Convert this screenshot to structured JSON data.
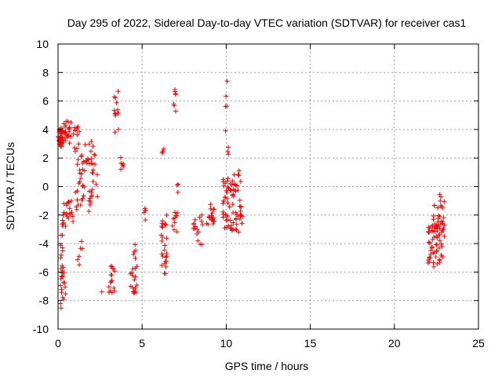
{
  "chart_data": {
    "type": "scatter",
    "title": "Day 295 of 2022, Sidereal Day-to-day VTEC variation (SDTVAR) for receiver cas1",
    "xlabel": "GPS time / hours",
    "ylabel": "SDTVAR / TECUs",
    "xlim": [
      0,
      25
    ],
    "ylim": [
      -10,
      10
    ],
    "xticks": [
      0,
      5,
      10,
      15,
      20,
      25
    ],
    "yticks": [
      -10,
      -8,
      -6,
      -4,
      -2,
      0,
      2,
      4,
      6,
      8,
      10
    ],
    "grid": true,
    "marker": "+",
    "series_color": "#ff0000",
    "clusters": [
      {
        "x": [
          0.0,
          0.3
        ],
        "y": [
          2.8,
          4.1
        ],
        "n": 40
      },
      {
        "x": [
          0.15,
          0.45
        ],
        "y": [
          -9.5,
          -5.5
        ],
        "n": 18
      },
      {
        "x": [
          0.1,
          0.35
        ],
        "y": [
          -6.5,
          -2.0
        ],
        "n": 14
      },
      {
        "x": [
          0.3,
          0.7
        ],
        "y": [
          -2.8,
          -1.0
        ],
        "n": 10
      },
      {
        "x": [
          0.3,
          0.8
        ],
        "y": [
          3.0,
          4.6
        ],
        "n": 22
      },
      {
        "x": [
          0.5,
          0.9
        ],
        "y": [
          -2.5,
          -1.0
        ],
        "n": 10
      },
      {
        "x": [
          0.9,
          1.3
        ],
        "y": [
          2.5,
          4.3
        ],
        "n": 12
      },
      {
        "x": [
          1.0,
          1.6
        ],
        "y": [
          -1.8,
          2.5
        ],
        "n": 26
      },
      {
        "x": [
          1.15,
          1.5
        ],
        "y": [
          -5.5,
          -3.2
        ],
        "n": 6
      },
      {
        "x": [
          1.5,
          2.0
        ],
        "y": [
          -2.0,
          0.0
        ],
        "n": 10
      },
      {
        "x": [
          1.6,
          2.2
        ],
        "y": [
          1.5,
          3.2
        ],
        "n": 16
      },
      {
        "x": [
          2.0,
          2.4
        ],
        "y": [
          -1.0,
          1.8
        ],
        "n": 10
      },
      {
        "x": [
          2.6,
          2.6
        ],
        "y": [
          -7.4,
          -7.4
        ],
        "n": 1
      },
      {
        "x": [
          3.0,
          3.4
        ],
        "y": [
          -7.5,
          -5.5
        ],
        "n": 16
      },
      {
        "x": [
          3.3,
          3.6
        ],
        "y": [
          3.6,
          6.8
        ],
        "n": 14
      },
      {
        "x": [
          3.7,
          3.9
        ],
        "y": [
          1.2,
          2.2
        ],
        "n": 6
      },
      {
        "x": [
          4.3,
          4.7
        ],
        "y": [
          -7.5,
          -3.8
        ],
        "n": 22
      },
      {
        "x": [
          5.1,
          5.3
        ],
        "y": [
          -3.0,
          -1.5
        ],
        "n": 5
      },
      {
        "x": [
          6.1,
          6.5
        ],
        "y": [
          -6.2,
          -2.0
        ],
        "n": 26
      },
      {
        "x": [
          6.15,
          6.3
        ],
        "y": [
          2.2,
          2.8
        ],
        "n": 4
      },
      {
        "x": [
          6.8,
          7.1
        ],
        "y": [
          -3.2,
          -1.8
        ],
        "n": 10
      },
      {
        "x": [
          6.85,
          7.0
        ],
        "y": [
          5.0,
          7.3
        ],
        "n": 7
      },
      {
        "x": [
          7.0,
          7.2
        ],
        "y": [
          -0.8,
          0.2
        ],
        "n": 3
      },
      {
        "x": [
          8.0,
          8.6
        ],
        "y": [
          -4.2,
          -1.8
        ],
        "n": 16
      },
      {
        "x": [
          8.8,
          9.3
        ],
        "y": [
          -2.8,
          -1.2
        ],
        "n": 18
      },
      {
        "x": [
          9.8,
          10.3
        ],
        "y": [
          -3.0,
          0.8
        ],
        "n": 34
      },
      {
        "x": [
          9.95,
          10.15
        ],
        "y": [
          1.5,
          8.5
        ],
        "n": 8
      },
      {
        "x": [
          10.3,
          10.9
        ],
        "y": [
          -3.2,
          1.3
        ],
        "n": 40
      },
      {
        "x": [
          10.8,
          11.0
        ],
        "y": [
          -2.6,
          -1.8
        ],
        "n": 4
      },
      {
        "x": [
          22.0,
          22.4
        ],
        "y": [
          -5.5,
          -2.5
        ],
        "n": 26
      },
      {
        "x": [
          22.3,
          22.7
        ],
        "y": [
          -5.8,
          -1.2
        ],
        "n": 26
      },
      {
        "x": [
          22.6,
          23.0
        ],
        "y": [
          -5.2,
          -0.3
        ],
        "n": 30
      }
    ]
  }
}
